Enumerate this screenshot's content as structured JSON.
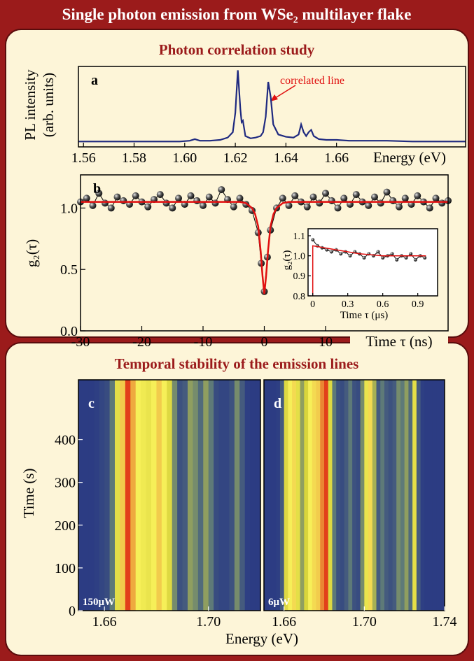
{
  "title": "Single photon emission from WSe₂ multilayer flake",
  "sections": [
    {
      "title": "Photon correlation study"
    },
    {
      "title": "Temporal stability of the emission lines"
    }
  ],
  "chart_data": [
    {
      "type": "line",
      "label": "a",
      "ylabel": [
        "PL intensity",
        "(arb. units)"
      ],
      "xlabel": "Energy (eV)",
      "annotation": "correlated line",
      "color": "#1f2a80",
      "x": [
        1.558,
        1.57,
        1.58,
        1.59,
        1.598,
        1.602,
        1.604,
        1.606,
        1.61,
        1.614,
        1.617,
        1.619,
        1.62,
        1.621,
        1.622,
        1.6225,
        1.623,
        1.6235,
        1.624,
        1.626,
        1.628,
        1.63,
        1.631,
        1.632,
        1.633,
        1.634,
        1.635,
        1.637,
        1.64,
        1.643,
        1.645,
        1.646,
        1.647,
        1.648,
        1.649,
        1.65,
        1.651,
        1.653,
        1.656,
        1.66,
        1.665,
        1.67,
        1.68,
        1.69,
        1.7,
        1.711
      ],
      "values": [
        3,
        3,
        3,
        3,
        3,
        4,
        6,
        4,
        4,
        5,
        8,
        15,
        40,
        95,
        45,
        28,
        30,
        20,
        10,
        7,
        8,
        10,
        15,
        35,
        80,
        60,
        25,
        12,
        9,
        8,
        12,
        25,
        15,
        10,
        15,
        18,
        10,
        6,
        5,
        5,
        4,
        4,
        4,
        3,
        3,
        3
      ],
      "xlim": [
        1.558,
        1.711
      ],
      "ylim": [
        -4,
        100
      ],
      "xticks": [
        1.56,
        1.58,
        {
          "value": 1.6,
          "label": "1.60"
        },
        1.62,
        1.64,
        1.66
      ]
    },
    {
      "type": "scatter",
      "label": "b",
      "ylabel": "g₂(τ)",
      "xlabel": "Time τ (ns)",
      "xlim": [
        -30,
        30
      ],
      "ylim": [
        0,
        1.27
      ],
      "xticks": [
        -30,
        -20,
        -10,
        0,
        10
      ],
      "yticks": [
        {
          "value": 0,
          "label": "0.0"
        },
        0.5,
        {
          "value": 1,
          "label": "1.0"
        }
      ],
      "series": [
        {
          "color": "#000000",
          "markers": true,
          "x": [
            -30,
            -29,
            -28,
            -27,
            -26,
            -25,
            -24,
            -23,
            -22,
            -21,
            -20,
            -19,
            -18,
            -17,
            -16,
            -15,
            -14,
            -13,
            -12,
            -11,
            -10,
            -9,
            -8,
            -7,
            -6,
            -5,
            -4,
            -3,
            -2,
            -1,
            -0.5,
            0,
            0.5,
            1,
            2,
            3,
            4,
            5,
            6,
            7,
            8,
            9,
            10,
            11,
            12,
            13,
            14,
            15,
            16,
            17,
            18,
            19,
            20,
            21,
            22,
            23,
            24,
            25,
            26,
            27,
            28,
            29,
            30
          ],
          "values": [
            1.05,
            1.08,
            1.02,
            1.12,
            1.04,
            1.0,
            1.09,
            1.06,
            1.03,
            1.1,
            1.05,
            1.01,
            1.07,
            1.11,
            1.04,
            1.0,
            1.08,
            1.03,
            1.1,
            1.06,
            1.02,
            1.09,
            1.04,
            1.15,
            1.07,
            1.01,
            1.08,
            1.03,
            0.98,
            0.8,
            0.55,
            0.32,
            0.6,
            0.82,
            1.0,
            1.08,
            1.02,
            1.1,
            1.05,
            1.01,
            1.09,
            1.04,
            1.12,
            1.06,
            1.0,
            1.08,
            1.03,
            1.11,
            1.05,
            1.02,
            1.09,
            1.04,
            1.13,
            1.06,
            1.01,
            1.08,
            1.03,
            1.1,
            1.05,
            1.0,
            1.08,
            1.04,
            1.06
          ]
        },
        {
          "color": "#e01010",
          "markers": false,
          "x": [
            -30,
            -4,
            -3,
            -2,
            -1.5,
            -1,
            -0.6,
            -0.3,
            0,
            0.3,
            0.6,
            1,
            1.5,
            2,
            3,
            4,
            30
          ],
          "values": [
            1.05,
            1.05,
            1.04,
            1.0,
            0.95,
            0.85,
            0.65,
            0.45,
            0.3,
            0.45,
            0.65,
            0.85,
            0.95,
            1.0,
            1.04,
            1.05,
            1.05
          ]
        }
      ],
      "inset": {
        "type": "scatter",
        "ylabel": "g₂(τ)",
        "xlabel": "Time τ (μs)",
        "xlim": [
          -0.04,
          1.07
        ],
        "ylim": [
          0.8,
          1.135
        ],
        "xticks": [
          0,
          0.3,
          0.6,
          0.9
        ],
        "yticks": [
          0.8,
          0.9,
          {
            "value": 1,
            "label": "1.0"
          },
          1.1
        ],
        "series": [
          {
            "color": "#000000",
            "markers": true,
            "x": [
              0,
              0.04,
              0.08,
              0.12,
              0.16,
              0.2,
              0.24,
              0.28,
              0.32,
              0.36,
              0.4,
              0.44,
              0.48,
              0.52,
              0.56,
              0.6,
              0.64,
              0.68,
              0.72,
              0.76,
              0.8,
              0.84,
              0.88,
              0.92,
              0.96
            ],
            "values": [
              1.08,
              1.05,
              1.04,
              1.03,
              1.02,
              1.03,
              1.01,
              1.02,
              1.0,
              1.02,
              1.01,
              0.99,
              1.01,
              1.0,
              1.02,
              0.99,
              1.0,
              1.01,
              0.98,
              1.0,
              0.99,
              1.01,
              0.98,
              1.0,
              0.99
            ]
          },
          {
            "color": "#e01010",
            "markers": false,
            "x": [
              0,
              0,
              0.1,
              0.2,
              0.3,
              0.4,
              0.5,
              0.6,
              0.7,
              0.8,
              0.9,
              0.97
            ],
            "values": [
              0.8,
              1.05,
              1.04,
              1.03,
              1.02,
              1.01,
              1.005,
              1.0,
              1.0,
              1.0,
              1.0,
              1.0
            ]
          }
        ]
      }
    },
    {
      "type": "heatmap",
      "label": "c",
      "power": "150μW",
      "ylabel": "Time (s)",
      "colorscale": [
        "#1f2d86",
        "#5e7a78",
        "#d8d43c",
        "#f6ef58",
        "#e2401a"
      ],
      "xlim": [
        1.65,
        1.72
      ],
      "ylim": [
        0,
        540
      ],
      "xticks": [
        1.66,
        {
          "value": 1.7,
          "label": "1.70"
        }
      ],
      "yticks": [
        0,
        100,
        200,
        300,
        400
      ],
      "x": [
        1.651,
        1.653,
        1.655,
        1.657,
        1.659,
        1.661,
        1.663,
        1.665,
        1.667,
        1.669,
        1.671,
        1.673,
        1.675,
        1.677,
        1.679,
        1.681,
        1.683,
        1.685,
        1.687,
        1.689,
        1.691,
        1.693,
        1.695,
        1.697,
        1.699,
        1.701,
        1.703,
        1.705,
        1.707,
        1.709,
        1.711,
        1.713,
        1.715,
        1.717,
        1.719
      ],
      "values": [
        5,
        5,
        5,
        6,
        8,
        10,
        25,
        60,
        80,
        100,
        85,
        75,
        70,
        65,
        75,
        80,
        75,
        55,
        30,
        12,
        15,
        35,
        30,
        20,
        35,
        25,
        10,
        8,
        8,
        12,
        30,
        15,
        6,
        5,
        5
      ]
    },
    {
      "type": "heatmap",
      "label": "d",
      "power": "6μW",
      "xlabel": "Energy (eV)",
      "colorscale": [
        "#1f2d86",
        "#5e7a78",
        "#d8d43c",
        "#f6ef58",
        "#e2401a"
      ],
      "xlim": [
        1.65,
        1.74
      ],
      "ylim": [
        0,
        540
      ],
      "xticks": [
        1.66,
        {
          "value": 1.7,
          "label": "1.70"
        },
        1.74
      ],
      "x": [
        1.651,
        1.653,
        1.655,
        1.657,
        1.659,
        1.661,
        1.663,
        1.665,
        1.667,
        1.669,
        1.671,
        1.673,
        1.675,
        1.677,
        1.679,
        1.681,
        1.683,
        1.685,
        1.687,
        1.689,
        1.691,
        1.693,
        1.695,
        1.697,
        1.699,
        1.701,
        1.703,
        1.705,
        1.707,
        1.709,
        1.711,
        1.713,
        1.715,
        1.717,
        1.719,
        1.721,
        1.723,
        1.725,
        1.727,
        1.729,
        1.731,
        1.733,
        1.735,
        1.737,
        1.739
      ],
      "values": [
        5,
        5,
        5,
        6,
        15,
        55,
        75,
        78,
        60,
        35,
        50,
        75,
        78,
        80,
        90,
        100,
        55,
        25,
        12,
        10,
        15,
        25,
        12,
        10,
        30,
        65,
        78,
        40,
        15,
        25,
        15,
        12,
        15,
        30,
        25,
        35,
        20,
        60,
        15,
        6,
        5,
        5,
        5,
        5,
        5
      ]
    }
  ]
}
